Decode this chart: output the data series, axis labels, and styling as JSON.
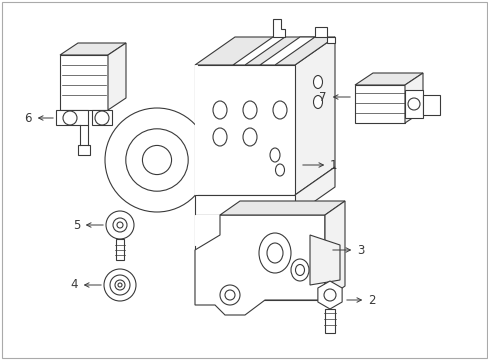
{
  "background_color": "#ffffff",
  "line_color": "#3a3a3a",
  "figsize": [
    4.89,
    3.6
  ],
  "dpi": 100,
  "border_color": "#cccccc",
  "shade_color": "#e8e8e8",
  "shade_color2": "#f2f2f2"
}
